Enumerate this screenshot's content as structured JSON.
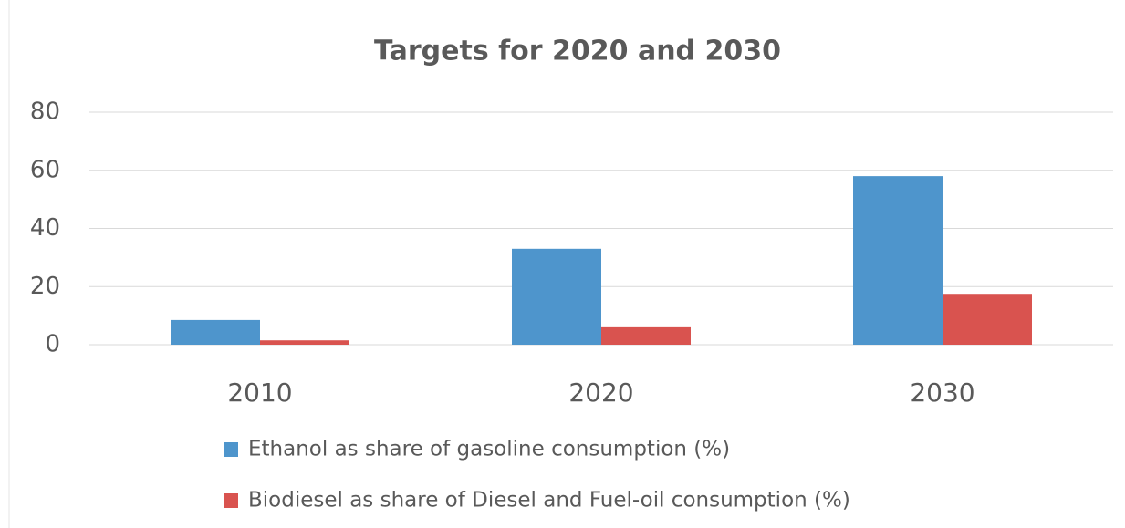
{
  "chart_data": {
    "type": "bar",
    "title": "Targets for 2020 and 2030",
    "categories": [
      "2010",
      "2020",
      "2030"
    ],
    "series": [
      {
        "name": "Ethanol as share of gasoline consumption (%)",
        "color": "#4e95cc",
        "values": [
          8.5,
          33,
          58
        ]
      },
      {
        "name": "Biodiesel as share of Diesel and Fuel-oil consumption (%)",
        "color": "#d9534f",
        "values": [
          1.5,
          6,
          17.5
        ]
      }
    ],
    "ylim": [
      0,
      80
    ],
    "yticks": [
      0,
      20,
      40,
      60,
      80
    ],
    "grid": true,
    "legend": "bottom"
  }
}
